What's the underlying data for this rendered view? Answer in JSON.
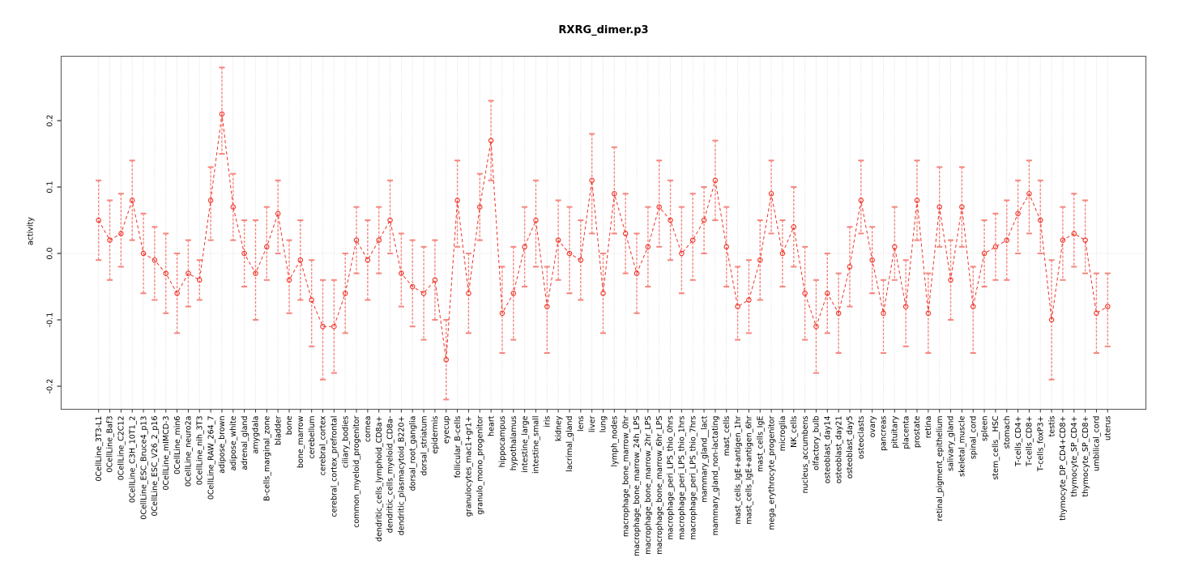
{
  "header": {
    "title": "RXRG_dimer.p3"
  },
  "chart_data": {
    "type": "scatter",
    "title": "RXRG_dimer.p3",
    "xlabel": "",
    "ylabel": "activity",
    "ylim": [
      -0.235,
      0.297
    ],
    "yticks": [
      "0.2",
      "0.1",
      "0.0",
      "-0.1",
      "-0.2"
    ],
    "ytick_values": [
      0.2,
      0.1,
      0.0,
      -0.1,
      -0.2
    ],
    "legend_position": "none",
    "grid": "vertical dotted line per category, horizontal dotted line at y=0",
    "marker": "open-circle with dashed connecting line and error bars",
    "colors": {
      "series": "#ef352a",
      "error_bar": "#f5867d",
      "grid": "#d9d9d9",
      "frame": "#666666",
      "tick": "#333333",
      "text": "#000000"
    },
    "categories": [
      "0CellLine_3T3-L1",
      "0CellLine_Baf3",
      "0CellLine_C2C12",
      "0CellLine_C3H_10T1_2",
      "0CellLine_ESC_Bruce4_p13",
      "0CellLine_ESC_V26_2_p16",
      "0CellLine_mIMCD-3",
      "0CellLine_min6",
      "0CellLine_neuro2a",
      "0CellLine_nih_3T3",
      "0CellLine_RAW_264_7",
      "adipose_brown",
      "adipose_white",
      "adrenal_gland",
      "amygdala",
      "B-cells_marginal_zone",
      "bladder",
      "bone",
      "bone_marrow",
      "cerebellum",
      "cerebral_cortex",
      "cerebral_cortex_prefrontal",
      "ciliary_bodies",
      "common_myeloid_progenitor",
      "cornea",
      "dendritic_cells_lymphoid_CD8a+",
      "dendritic_cells_myeloid_CD8a-",
      "dendritic_plasmacytoid_B220+",
      "dorsal_root_ganglia",
      "dorsal_striatum",
      "epidermis",
      "eyecup",
      "follicular_B-cells",
      "granulocytes_mac1+gr1+",
      "granulo_mono_progenitor",
      "heart",
      "hippocampus",
      "hypothalamus",
      "intestine_large",
      "intestine_small",
      "iris",
      "kidney",
      "lacrimal_gland",
      "lens",
      "liver",
      "lung",
      "lymph_nodes",
      "macrophage_bone_marrow_0hr",
      "macrophage_bone_marrow_24h_LPS",
      "macrophage_bone_marrow_2hr_LPS",
      "macrophage_bone_marrow_6hr_LPS",
      "macrophage_peri_LPS_thio_0hrs",
      "macrophage_peri_LPS_thio_1hrs",
      "macrophage_peri_LPS_thio_7hrs",
      "mammary_gland__lact",
      "mammary_gland_non-lactating",
      "mast_cells",
      "mast_cells_IgE+antigen_1hr",
      "mast_cells_IgE+antigen_6hr",
      "mast_cells_IgE",
      "mega_erythrocyte_progenitor",
      "microglia",
      "NK_cells",
      "nucleus_accumbens",
      "olfactory_bulb",
      "osteoblast_day14",
      "osteoblast_day21",
      "osteoblast_day5",
      "osteoclasts",
      "ovary",
      "pancreas",
      "pituitary",
      "placenta",
      "prostate",
      "retina",
      "retinal_pigment_epithelium",
      "salivary_gland",
      "skeletal_muscle",
      "spinal_cord",
      "spleen",
      "stem_cells__HSC",
      "stomach",
      "T-cells_CD4+",
      "T-cells_CD8+",
      "T-cells_foxP3+",
      "testis",
      "thymocyte_DP_CD4+CD8+",
      "thymocyte_SP_CD4+",
      "thymocyte_SP_CD8+",
      "umbilical_cord",
      "uterus"
    ],
    "values": [
      0.05,
      0.02,
      0.03,
      0.08,
      0.0,
      -0.01,
      -0.03,
      -0.06,
      -0.03,
      -0.04,
      0.08,
      0.21,
      0.07,
      0.0,
      -0.03,
      0.01,
      0.06,
      -0.04,
      -0.01,
      -0.07,
      -0.11,
      -0.11,
      -0.06,
      0.02,
      -0.01,
      0.02,
      0.05,
      -0.03,
      -0.05,
      -0.06,
      -0.04,
      -0.16,
      0.08,
      -0.06,
      0.07,
      0.17,
      -0.09,
      -0.06,
      0.01,
      0.05,
      -0.08,
      0.02,
      0.0,
      -0.01,
      0.11,
      -0.06,
      0.09,
      0.03,
      -0.03,
      0.01,
      0.07,
      0.05,
      0.0,
      0.02,
      0.05,
      0.11,
      0.01,
      -0.08,
      -0.07,
      -0.01,
      0.09,
      0.0,
      0.04,
      -0.06,
      -0.11,
      -0.06,
      -0.09,
      -0.02,
      0.08,
      -0.01,
      -0.09,
      0.01,
      -0.08,
      0.08,
      -0.09,
      0.07,
      -0.04,
      0.07,
      -0.08,
      0.0,
      0.01,
      0.02,
      0.06,
      0.09,
      0.05,
      -0.1,
      0.02,
      0.03,
      0.02,
      -0.09,
      -0.08
    ],
    "err_hi": [
      0.11,
      0.08,
      0.09,
      0.14,
      0.06,
      0.04,
      0.03,
      0.0,
      0.02,
      -0.01,
      0.13,
      0.28,
      0.12,
      0.05,
      0.05,
      0.07,
      0.11,
      0.02,
      0.05,
      -0.01,
      -0.04,
      -0.04,
      0.0,
      0.07,
      0.05,
      0.07,
      0.11,
      0.03,
      0.02,
      0.01,
      0.02,
      -0.1,
      0.14,
      0.0,
      0.12,
      0.23,
      -0.02,
      0.01,
      0.07,
      0.11,
      -0.02,
      0.08,
      0.07,
      0.05,
      0.18,
      0.0,
      0.16,
      0.09,
      0.03,
      0.07,
      0.14,
      0.11,
      0.07,
      0.09,
      0.1,
      0.17,
      0.07,
      -0.02,
      -0.01,
      0.05,
      0.14,
      0.05,
      0.1,
      0.01,
      -0.04,
      0.0,
      -0.03,
      0.04,
      0.14,
      0.04,
      -0.04,
      0.07,
      -0.01,
      0.14,
      -0.03,
      0.13,
      0.02,
      0.13,
      -0.02,
      0.05,
      0.06,
      0.08,
      0.11,
      0.14,
      0.11,
      -0.01,
      0.07,
      0.09,
      0.08,
      -0.03,
      -0.03
    ],
    "err_lo": [
      -0.01,
      -0.04,
      -0.02,
      0.02,
      -0.06,
      -0.07,
      -0.09,
      -0.12,
      -0.08,
      -0.07,
      0.02,
      0.15,
      0.02,
      -0.05,
      -0.1,
      -0.04,
      0.0,
      -0.09,
      -0.07,
      -0.14,
      -0.19,
      -0.18,
      -0.12,
      -0.03,
      -0.07,
      -0.03,
      0.0,
      -0.08,
      -0.11,
      -0.13,
      -0.1,
      -0.22,
      0.01,
      -0.12,
      0.02,
      0.11,
      -0.15,
      -0.13,
      -0.05,
      -0.02,
      -0.15,
      -0.04,
      -0.06,
      -0.07,
      0.03,
      -0.12,
      0.03,
      -0.03,
      -0.09,
      -0.05,
      0.01,
      -0.01,
      -0.06,
      -0.04,
      0.0,
      0.05,
      -0.05,
      -0.13,
      -0.12,
      -0.07,
      0.03,
      -0.05,
      -0.02,
      -0.13,
      -0.18,
      -0.12,
      -0.15,
      -0.08,
      0.03,
      -0.06,
      -0.15,
      -0.04,
      -0.14,
      0.02,
      -0.15,
      0.01,
      -0.1,
      0.01,
      -0.15,
      -0.05,
      -0.04,
      -0.04,
      0.0,
      0.03,
      0.0,
      -0.19,
      -0.04,
      -0.02,
      -0.03,
      -0.15,
      -0.14
    ]
  }
}
